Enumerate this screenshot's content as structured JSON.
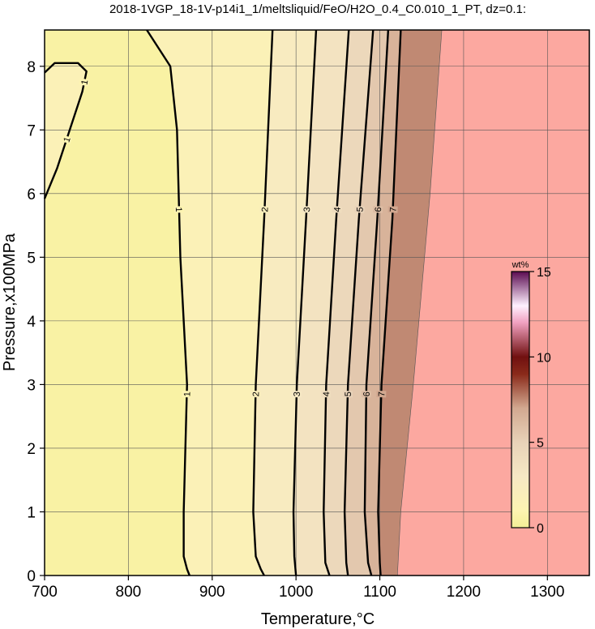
{
  "chart_data": {
    "type": "contour",
    "title": "2018-1VGP_18-1V-p14i1_1/meltsliquid/FeO/H2O_0.4_C0.010_1_PT, dz=0.1:",
    "x_label": "Temperature,°C",
    "y_label": "Pressure,x100MPa",
    "xlim": [
      700,
      1350
    ],
    "ylim": [
      0,
      8.57
    ],
    "xticks": [
      700,
      800,
      900,
      1000,
      1100,
      1200,
      1300
    ],
    "yticks": [
      0,
      1,
      2,
      3,
      4,
      5,
      6,
      7,
      8
    ],
    "grid": true,
    "contours": [
      {
        "level": 1,
        "x": [
          700,
          712,
          740,
          750,
          745,
          730,
          715,
          700
        ],
        "y": [
          7.9,
          8.05,
          8.05,
          7.92,
          7.6,
          7.0,
          6.4,
          5.92
        ]
      },
      {
        "level": 1,
        "x": [
          822,
          850,
          858,
          860,
          862,
          866,
          870,
          868,
          866,
          866,
          870,
          873
        ],
        "y": [
          8.57,
          8.0,
          7.0,
          6.0,
          5.0,
          4.0,
          3.0,
          2.0,
          1.0,
          0.3,
          0.1,
          0
        ]
      },
      {
        "level": 2,
        "x": [
          972,
          962,
          952,
          949,
          952,
          958,
          962
        ],
        "y": [
          8.57,
          5.6,
          3.0,
          1.0,
          0.3,
          0.1,
          0
        ]
      },
      {
        "level": 3,
        "x": [
          1024,
          1012,
          1001,
          997,
          998,
          1000
        ],
        "y": [
          8.57,
          5.6,
          3.0,
          1.0,
          0.3,
          0
        ]
      },
      {
        "level": 4,
        "x": [
          1063,
          1048,
          1036,
          1033,
          1035,
          1040
        ],
        "y": [
          8.57,
          5.6,
          3.0,
          1.0,
          0.2,
          0
        ]
      },
      {
        "level": 5,
        "x": [
          1092,
          1075,
          1062,
          1058,
          1060,
          1062
        ],
        "y": [
          8.57,
          5.6,
          3.0,
          1.0,
          0.2,
          0
        ]
      },
      {
        "level": 6,
        "x": [
          1110,
          1097,
          1084,
          1082,
          1086,
          1090
        ],
        "y": [
          8.57,
          5.6,
          3.0,
          1.0,
          0.2,
          0
        ]
      },
      {
        "level": 7,
        "x": [
          1125,
          1115,
          1102,
          1098,
          1100,
          1101
        ],
        "y": [
          8.57,
          5.6,
          3.0,
          1.0,
          0.2,
          0
        ]
      }
    ],
    "melt_boundary": {
      "x": [
        1174,
        1160,
        1140,
        1125,
        1121
      ],
      "y": [
        8.57,
        6.0,
        3.0,
        1.0,
        0
      ]
    },
    "outside_color": "#fca8a0",
    "colorbar": {
      "title": "wt%",
      "clim": [
        0,
        15
      ],
      "ticks": [
        0,
        5,
        10,
        15
      ],
      "stops": [
        {
          "value": 0,
          "color": "#f4ef96"
        },
        {
          "value": 1,
          "color": "#fdf4b2"
        },
        {
          "value": 3,
          "color": "#f6e8c4"
        },
        {
          "value": 5,
          "color": "#e8d2b8"
        },
        {
          "value": 7,
          "color": "#d2a890"
        },
        {
          "value": 9,
          "color": "#8a2a1a"
        },
        {
          "value": 10,
          "color": "#701010"
        },
        {
          "value": 12,
          "color": "#f0a0c0"
        },
        {
          "value": 13,
          "color": "#fff0ff"
        },
        {
          "value": 15,
          "color": "#5a0a50"
        }
      ]
    }
  }
}
